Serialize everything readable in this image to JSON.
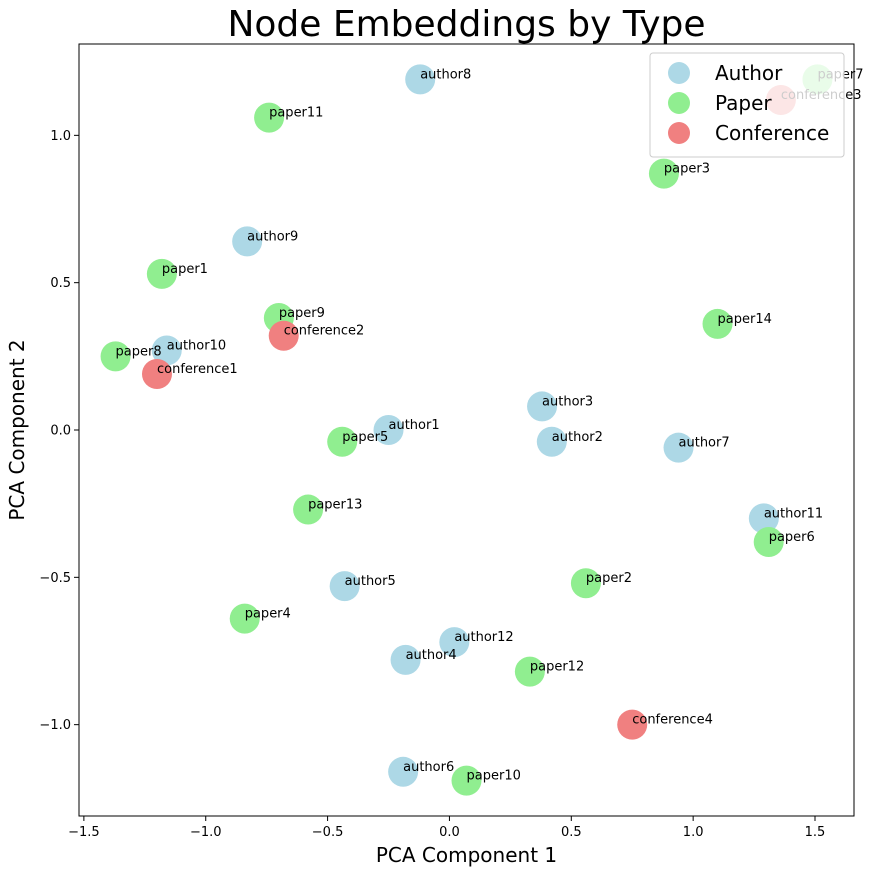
{
  "chart_data": {
    "type": "scatter",
    "title": "Node Embeddings by Type",
    "xlabel": "PCA Component 1",
    "ylabel": "PCA Component 2",
    "xlim": [
      -1.52,
      1.66
    ],
    "ylim": [
      -1.31,
      1.31
    ],
    "xticks": [
      -1.5,
      -1.0,
      -0.5,
      0.0,
      0.5,
      1.0,
      1.5
    ],
    "xtick_labels": [
      "−1.5",
      "−1.0",
      "−0.5",
      "0.0",
      "0.5",
      "1.0",
      "1.5"
    ],
    "yticks": [
      -1.0,
      -0.5,
      0.0,
      0.5,
      1.0
    ],
    "ytick_labels": [
      "−1.0",
      "−0.5",
      "0.0",
      "0.5",
      "1.0"
    ],
    "grid": false,
    "legend_placement": "top-right",
    "series": [
      {
        "name": "Author",
        "color": "#add8e6",
        "points": [
          {
            "label": "author1",
            "x": -0.25,
            "y": 0.0
          },
          {
            "label": "author2",
            "x": 0.42,
            "y": -0.04
          },
          {
            "label": "author3",
            "x": 0.38,
            "y": 0.08
          },
          {
            "label": "author4",
            "x": -0.18,
            "y": -0.78
          },
          {
            "label": "author5",
            "x": -0.43,
            "y": -0.53
          },
          {
            "label": "author6",
            "x": -0.19,
            "y": -1.16
          },
          {
            "label": "author7",
            "x": 0.94,
            "y": -0.06
          },
          {
            "label": "author8",
            "x": -0.12,
            "y": 1.19
          },
          {
            "label": "author9",
            "x": -0.83,
            "y": 0.64
          },
          {
            "label": "author10",
            "x": -1.16,
            "y": 0.27
          },
          {
            "label": "author11",
            "x": 1.29,
            "y": -0.3
          },
          {
            "label": "author12",
            "x": 0.02,
            "y": -0.72
          }
        ]
      },
      {
        "name": "Paper",
        "color": "#90ee90",
        "points": [
          {
            "label": "paper1",
            "x": -1.18,
            "y": 0.53
          },
          {
            "label": "paper2",
            "x": 0.56,
            "y": -0.52
          },
          {
            "label": "paper3",
            "x": 0.88,
            "y": 0.87
          },
          {
            "label": "paper4",
            "x": -0.84,
            "y": -0.64
          },
          {
            "label": "paper5",
            "x": -0.44,
            "y": -0.04
          },
          {
            "label": "paper6",
            "x": 1.31,
            "y": -0.38
          },
          {
            "label": "paper7",
            "x": 1.51,
            "y": 1.19
          },
          {
            "label": "paper8",
            "x": -1.37,
            "y": 0.25
          },
          {
            "label": "paper9",
            "x": -0.7,
            "y": 0.38
          },
          {
            "label": "paper10",
            "x": 0.07,
            "y": -1.19
          },
          {
            "label": "paper11",
            "x": -0.74,
            "y": 1.06
          },
          {
            "label": "paper12",
            "x": 0.33,
            "y": -0.82
          },
          {
            "label": "paper13",
            "x": -0.58,
            "y": -0.27
          },
          {
            "label": "paper14",
            "x": 1.1,
            "y": 0.36
          }
        ]
      },
      {
        "name": "Conference",
        "color": "#f08080",
        "points": [
          {
            "label": "conference1",
            "x": -1.2,
            "y": 0.19
          },
          {
            "label": "conference2",
            "x": -0.68,
            "y": 0.32
          },
          {
            "label": "conference3",
            "x": 1.36,
            "y": 1.12
          },
          {
            "label": "conference4",
            "x": 0.75,
            "y": -1.0
          }
        ]
      }
    ]
  }
}
